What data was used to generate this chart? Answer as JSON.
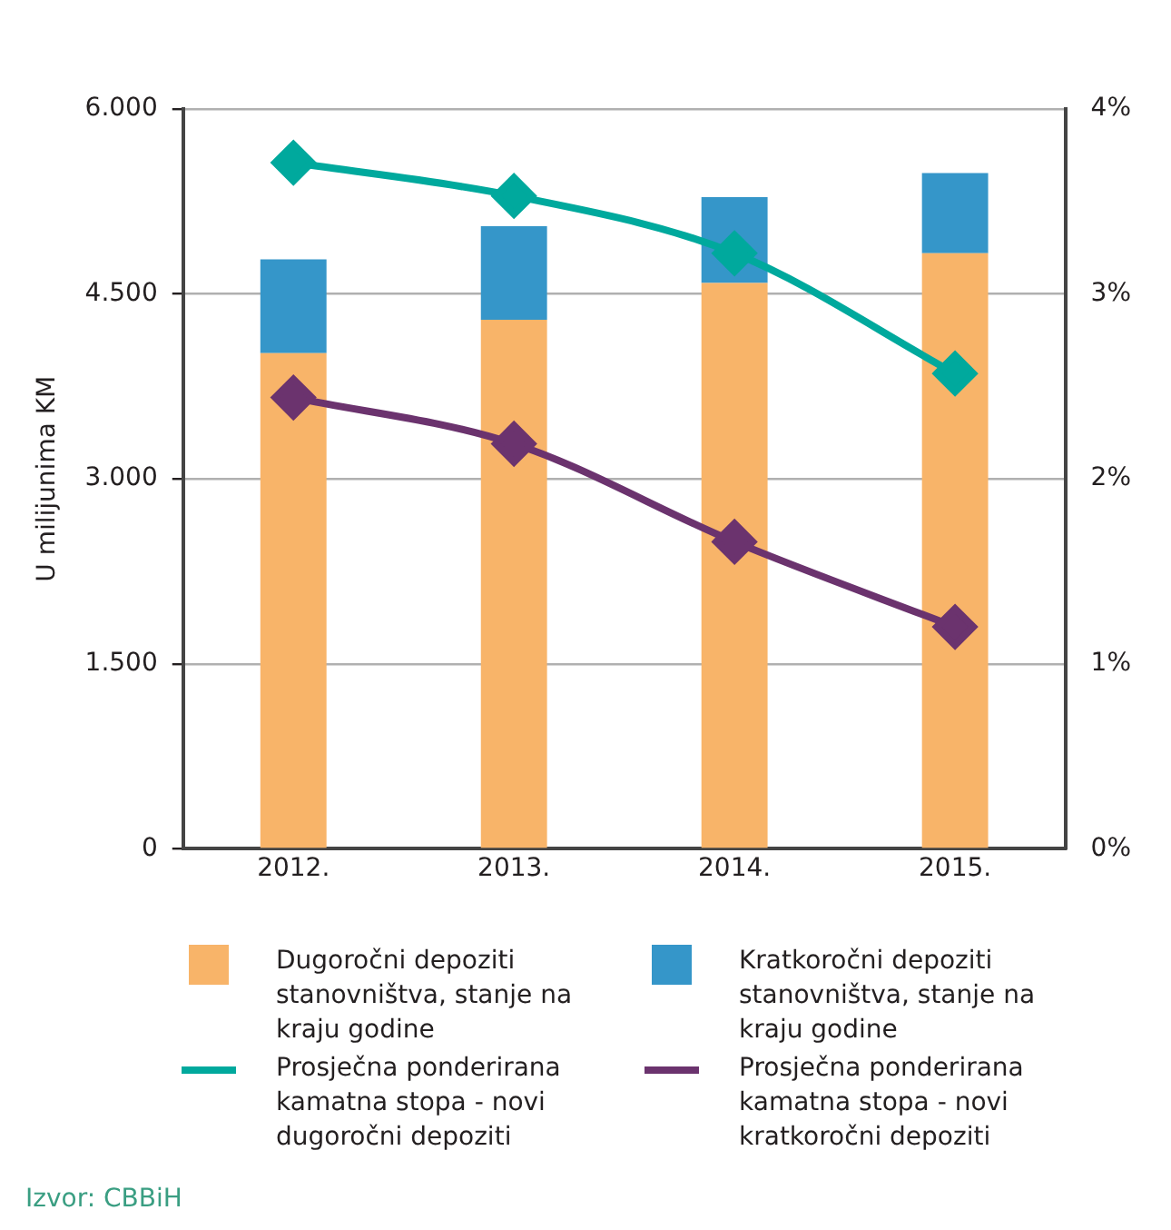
{
  "chart_data": {
    "type": "bar",
    "stacked": true,
    "ylabel": "U milijunima KM",
    "categories": [
      "2012.",
      "2013.",
      "2014.",
      "2015."
    ],
    "series": [
      {
        "name": "Dugoročni depoziti stanovništva, stanje na kraju godine",
        "color": "#f8b469",
        "values": [
          4020,
          4290,
          4590,
          4830
        ]
      },
      {
        "name": "Kratkoročni depoziti stanovništva, stanje na kraju godine",
        "color": "#3596c9",
        "values": [
          760,
          760,
          695,
          650
        ]
      },
      {
        "name": "Prosječna ponderirana kamatna stopa - novi dugoročni depoziti",
        "type": "line",
        "axis": "y2",
        "color": "#00a99d",
        "values": [
          3.71,
          3.53,
          3.22,
          2.57
        ]
      },
      {
        "name": "Prosječna ponderirana kamatna stopa - novi kratkoročni depoziti",
        "type": "line",
        "axis": "y2",
        "color": "#6b336e",
        "values": [
          2.44,
          2.19,
          1.66,
          1.2
        ]
      }
    ],
    "ylim": [
      0,
      6000
    ],
    "yticks": [
      {
        "value": 0,
        "label": "0"
      },
      {
        "value": 1500,
        "label": "1.500"
      },
      {
        "value": 3000,
        "label": "3.000"
      },
      {
        "value": 4500,
        "label": "4.500"
      },
      {
        "value": 6000,
        "label": "6.000"
      }
    ],
    "y2lim": [
      0,
      4
    ],
    "y2ticks": [
      {
        "value": 0,
        "label": "0%"
      },
      {
        "value": 1,
        "label": "1%"
      },
      {
        "value": 2,
        "label": "2%"
      },
      {
        "value": 3,
        "label": "3%"
      },
      {
        "value": 4,
        "label": "4%"
      }
    ],
    "grid": "y",
    "legend": "bottom",
    "marker": "diamond",
    "line_style": "solid",
    "annotations": [
      "Izvor: CBBiH"
    ]
  }
}
